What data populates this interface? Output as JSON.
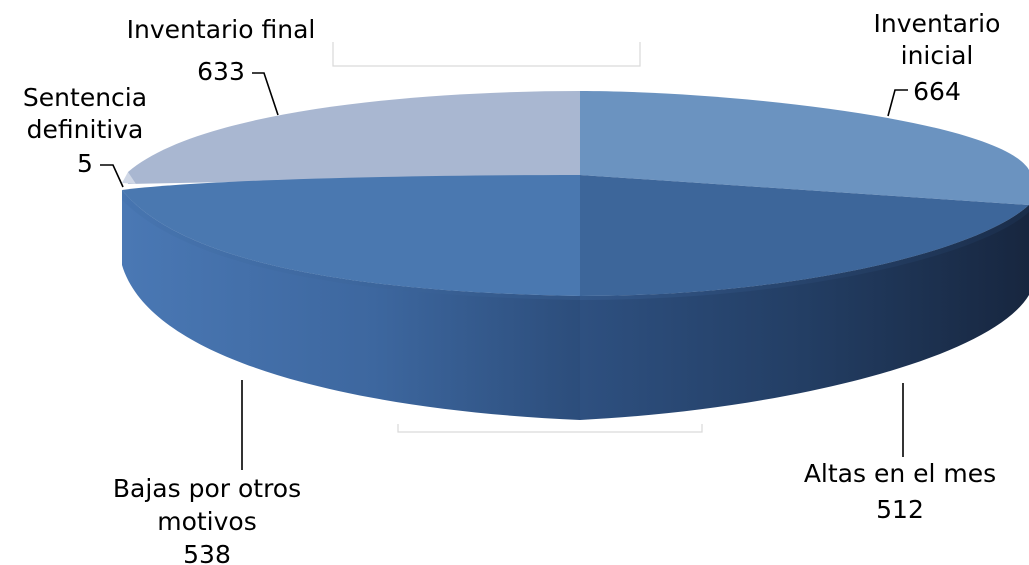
{
  "chart_data": {
    "type": "pie",
    "style": "3d-exploded",
    "title": "",
    "slices": [
      {
        "label_lines": [
          "Inventario",
          "inicial"
        ],
        "value": 664,
        "value_text": "664",
        "color": "#6b93c0"
      },
      {
        "label_lines": [
          "Altas en el mes"
        ],
        "value": 512,
        "value_text": "512",
        "color": "#3d669a"
      },
      {
        "label_lines": [
          "Bajas por otros",
          "motivos"
        ],
        "value": 538,
        "value_text": "538",
        "color": "#4a78b0"
      },
      {
        "label_lines": [
          "Sentencia",
          "definitiva"
        ],
        "value": 5,
        "value_text": "5",
        "color": "#cfd7e6"
      },
      {
        "label_lines": [
          "Inventario final"
        ],
        "value": 633,
        "value_text": "633",
        "color": "#a9b7d1"
      }
    ]
  }
}
